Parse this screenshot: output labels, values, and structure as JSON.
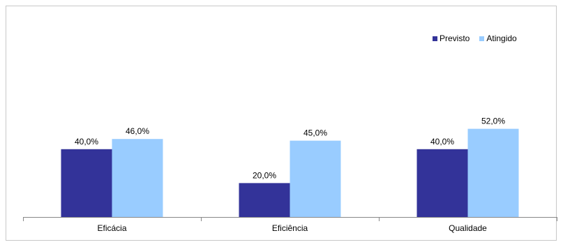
{
  "chart_data": {
    "type": "bar",
    "categories": [
      "Eficácia",
      "Eficiência",
      "Qualidade"
    ],
    "series": [
      {
        "name": "Previsto",
        "color": "#333399",
        "values": [
          40.0,
          20.0,
          40.0
        ]
      },
      {
        "name": "Atingido",
        "color": "#99ccff",
        "values": [
          46.0,
          45.0,
          52.0
        ]
      }
    ],
    "data_labels": [
      [
        "40,0%",
        "20,0%",
        "40,0%"
      ],
      [
        "46,0%",
        "45,0%",
        "52,0%"
      ]
    ],
    "ylim": [
      0,
      100
    ],
    "grid": false,
    "legend_position": "top-right"
  }
}
